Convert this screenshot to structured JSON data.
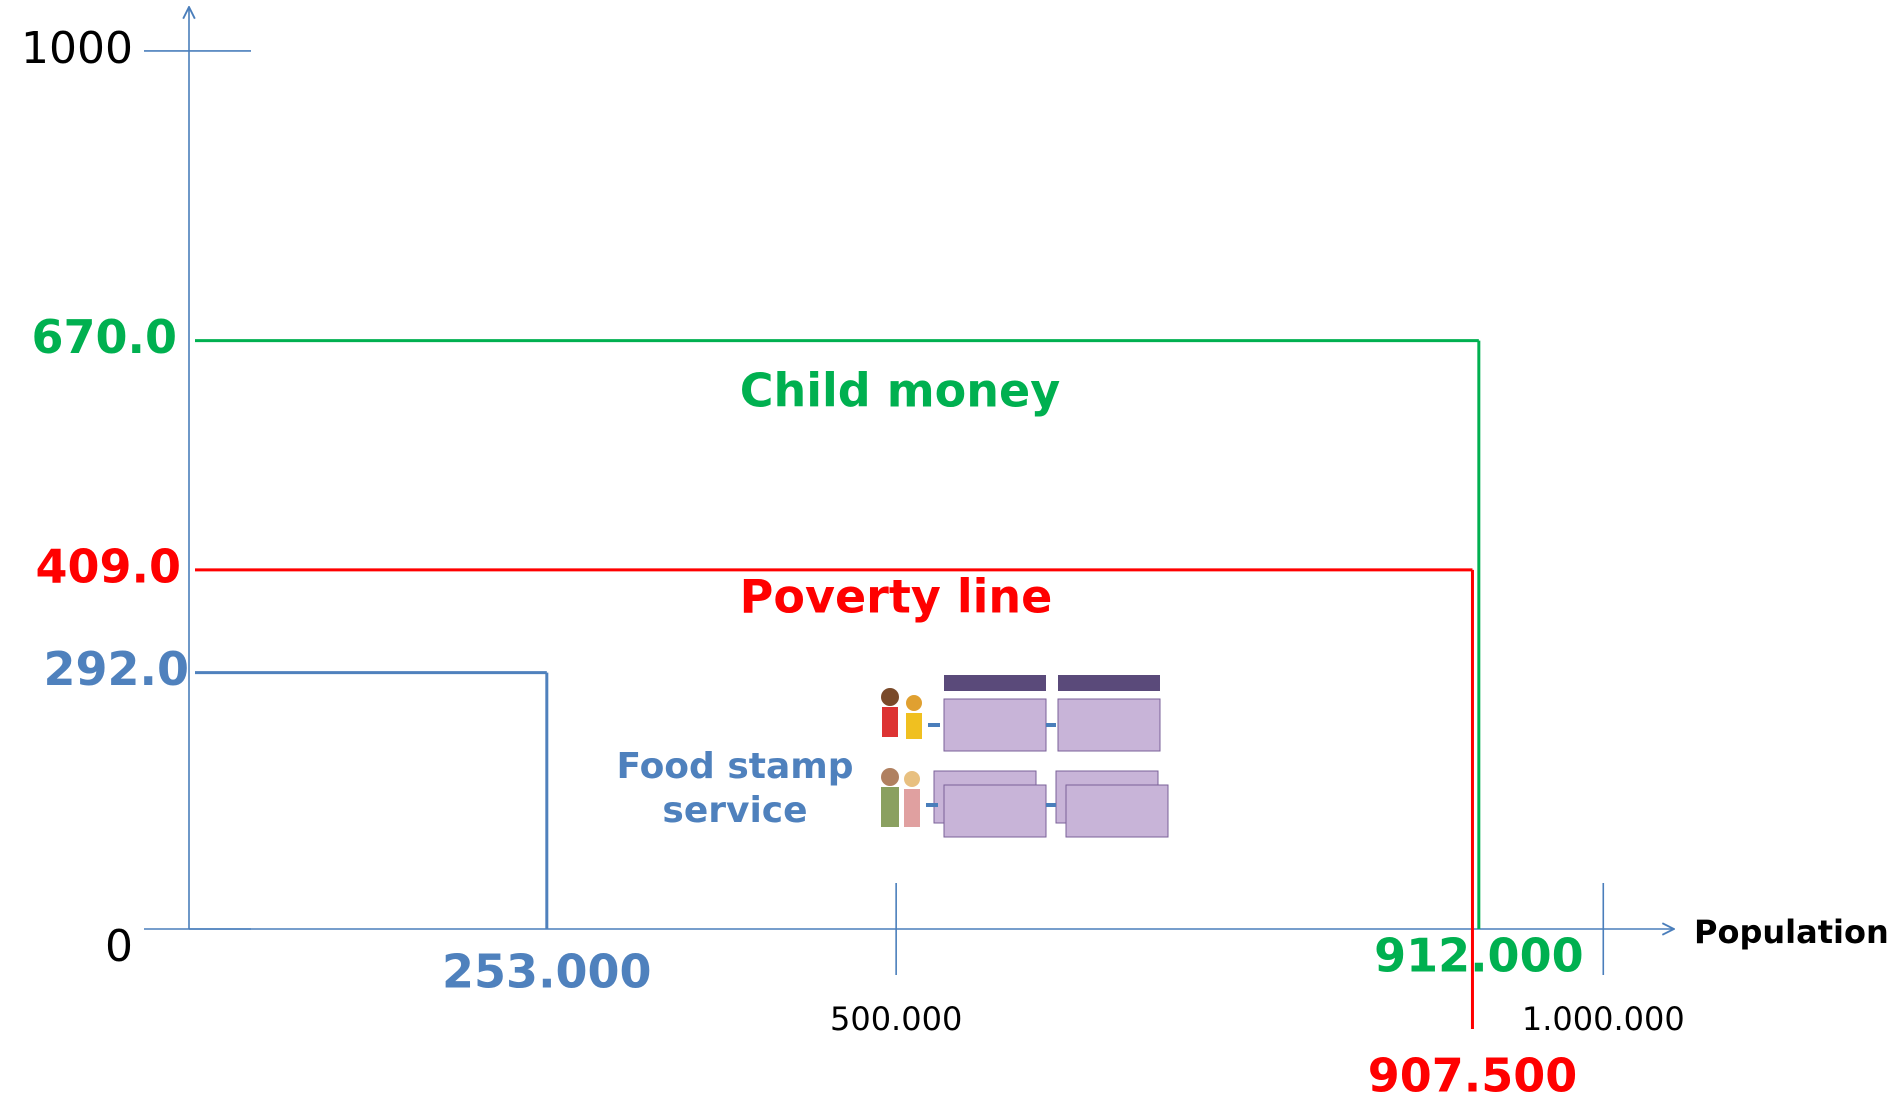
{
  "chart_data": {
    "type": "threshold",
    "xlabel": "Population",
    "xlim": [
      0,
      1050000
    ],
    "ylim": [
      0,
      1050
    ],
    "xticks": [
      {
        "value": 500000,
        "label": "500.000"
      },
      {
        "value": 1000000,
        "label": "1.000.000"
      }
    ],
    "yticks": [
      0,
      1000
    ],
    "series": [
      {
        "name": "Child money",
        "color": "#00b050",
        "y": 670,
        "y_label": "670.0",
        "x": 912000,
        "x_label": "912.000"
      },
      {
        "name": "Poverty line",
        "color": "#ff0000",
        "y": 409,
        "y_label": "409.0",
        "x": 907500,
        "x_label": "907.500"
      },
      {
        "name": "Food stamp service",
        "color": "#4f81bd",
        "y": 292,
        "y_label": "292.0",
        "x": 253000,
        "x_label": "253.000"
      }
    ]
  }
}
